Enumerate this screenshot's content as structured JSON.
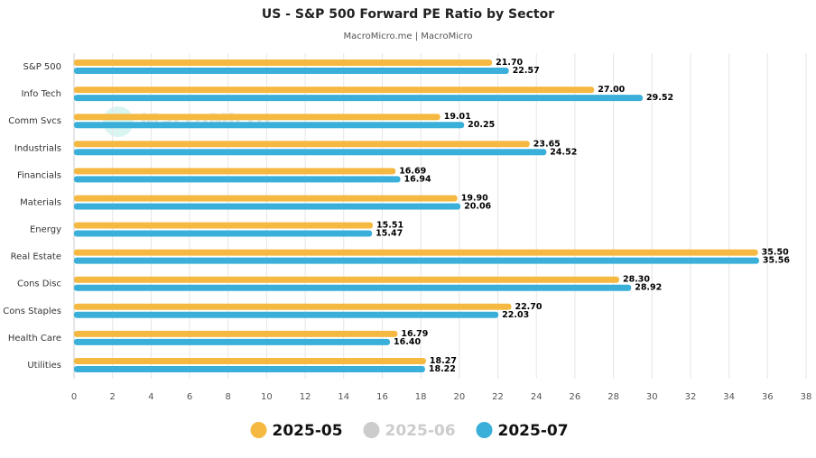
{
  "chart_data": {
    "type": "bar",
    "orientation": "horizontal",
    "title": "US - S&P 500 Forward PE Ratio by Sector",
    "subtitle": "MacroMicro.me | MacroMicro",
    "watermark": "MacroMicro",
    "categories": [
      "S&P 500",
      "Info Tech",
      "Comm Svcs",
      "Industrials",
      "Financials",
      "Materials",
      "Energy",
      "Real Estate",
      "Cons Disc",
      "Cons Staples",
      "Health Care",
      "Utilities"
    ],
    "series": [
      {
        "name": "2025-05",
        "color": "#f5b942",
        "visible": true,
        "values": [
          21.7,
          27.0,
          19.01,
          23.65,
          16.69,
          19.9,
          15.51,
          35.5,
          28.3,
          22.7,
          16.79,
          18.27
        ],
        "value_labels": [
          "21.70",
          "27.00",
          "19.01",
          "23.65",
          "16.69",
          "19.90",
          "15.51",
          "35.50",
          "28.30",
          "22.70",
          "16.79",
          "18.27"
        ]
      },
      {
        "name": "2025-06",
        "color": "#cccccc",
        "visible": false,
        "values": [
          null,
          null,
          null,
          null,
          null,
          null,
          null,
          null,
          null,
          null,
          null,
          null
        ]
      },
      {
        "name": "2025-07",
        "color": "#3aafd9",
        "visible": true,
        "values": [
          22.57,
          29.52,
          20.25,
          24.52,
          16.94,
          20.06,
          15.47,
          35.56,
          28.92,
          22.03,
          16.4,
          18.22
        ],
        "value_labels": [
          "22.57",
          "29.52",
          "20.25",
          "24.52",
          "16.94",
          "20.06",
          "15.47",
          "35.56",
          "28.92",
          "22.03",
          "16.40",
          "18.22"
        ]
      }
    ],
    "xlim": [
      0,
      38
    ],
    "xticks": [
      0,
      2,
      4,
      6,
      8,
      10,
      12,
      14,
      16,
      18,
      20,
      22,
      24,
      26,
      28,
      30,
      32,
      34,
      36,
      38
    ],
    "grid": true
  }
}
